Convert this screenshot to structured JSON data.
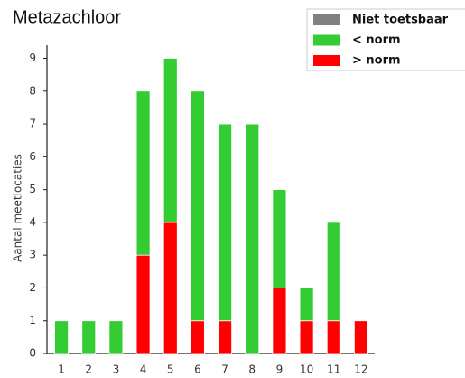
{
  "chart_data": {
    "type": "stacked-bar",
    "title": "Metazachloor",
    "y_label": "Aantal meetlocaties",
    "categories": [
      "1",
      "2",
      "3",
      "4",
      "5",
      "6",
      "7",
      "8",
      "9",
      "10",
      "11",
      "12"
    ],
    "series": [
      {
        "name": "Niet toetsbaar",
        "color": "#808080",
        "values": [
          0,
          0,
          0,
          0,
          0,
          0,
          0,
          0,
          0,
          0,
          0,
          0
        ]
      },
      {
        "name": "< norm",
        "color": "#33cc33",
        "values": [
          1,
          1,
          1,
          5,
          5,
          7,
          6,
          7,
          3,
          1,
          3,
          0
        ]
      },
      {
        "name": "> norm",
        "color": "#ff0000",
        "values": [
          0,
          0,
          0,
          3,
          4,
          1,
          1,
          0,
          2,
          1,
          1,
          1
        ]
      }
    ],
    "ylim": [
      0,
      9.4
    ],
    "yticks": [
      0,
      1,
      2,
      3,
      4,
      5,
      6,
      7,
      8,
      9
    ],
    "grid": false
  }
}
